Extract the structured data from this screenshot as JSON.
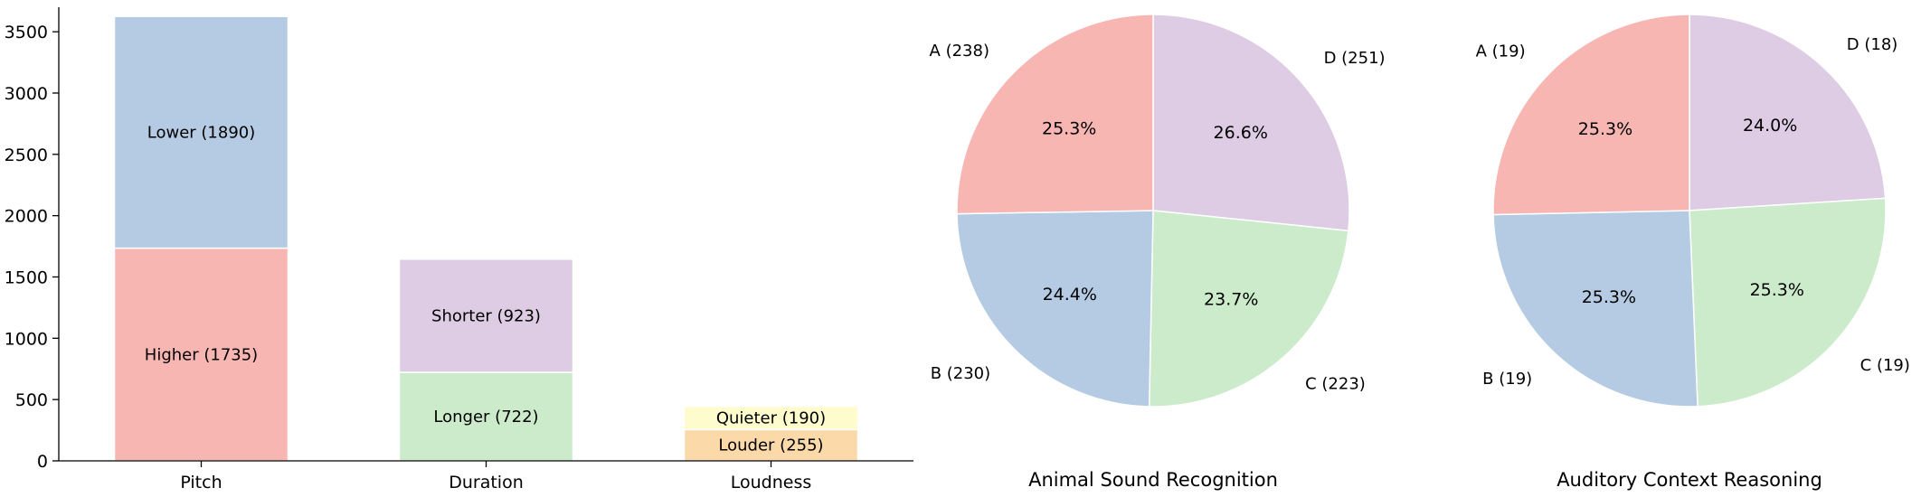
{
  "chart_data": [
    {
      "type": "bar",
      "stacked": true,
      "categories": [
        "Pitch",
        "Duration",
        "Loudness"
      ],
      "ylim": [
        0,
        3700
      ],
      "yticks": [
        0,
        500,
        1000,
        1500,
        2000,
        2500,
        3000,
        3500
      ],
      "grid": false,
      "segments": [
        [
          {
            "label": "Higher (1735)",
            "value": 1735,
            "color": "#f7b6b2"
          },
          {
            "label": "Lower (1890)",
            "value": 1890,
            "color": "#b4cbe3"
          }
        ],
        [
          {
            "label": "Longer (722)",
            "value": 722,
            "color": "#ccebcb"
          },
          {
            "label": "Shorter (923)",
            "value": 923,
            "color": "#decbe4"
          }
        ],
        [
          {
            "label": "Louder (255)",
            "value": 255,
            "color": "#fbd9a9"
          },
          {
            "label": "Quieter (190)",
            "value": 190,
            "color": "#fefccc"
          }
        ]
      ]
    },
    {
      "type": "pie",
      "title": "Animal Sound Recognition",
      "slices": [
        {
          "label": "A (238)",
          "value": 238,
          "pct": "25.3%",
          "color": "#f7b6b2"
        },
        {
          "label": "B (230)",
          "value": 230,
          "pct": "24.4%",
          "color": "#b4cbe3"
        },
        {
          "label": "C (223)",
          "value": 223,
          "pct": "23.7%",
          "color": "#ccebcb"
        },
        {
          "label": "D (251)",
          "value": 251,
          "pct": "26.6%",
          "color": "#decbe4"
        }
      ]
    },
    {
      "type": "pie",
      "title": "Auditory Context Reasoning",
      "slices": [
        {
          "label": "A (19)",
          "value": 19,
          "pct": "25.3%",
          "color": "#f7b6b2"
        },
        {
          "label": "B (19)",
          "value": 19,
          "pct": "25.3%",
          "color": "#b4cbe3"
        },
        {
          "label": "C (19)",
          "value": 19,
          "pct": "25.3%",
          "color": "#ccebcb"
        },
        {
          "label": "D (18)",
          "value": 18,
          "pct": "24.0%",
          "color": "#decbe4"
        }
      ]
    }
  ]
}
